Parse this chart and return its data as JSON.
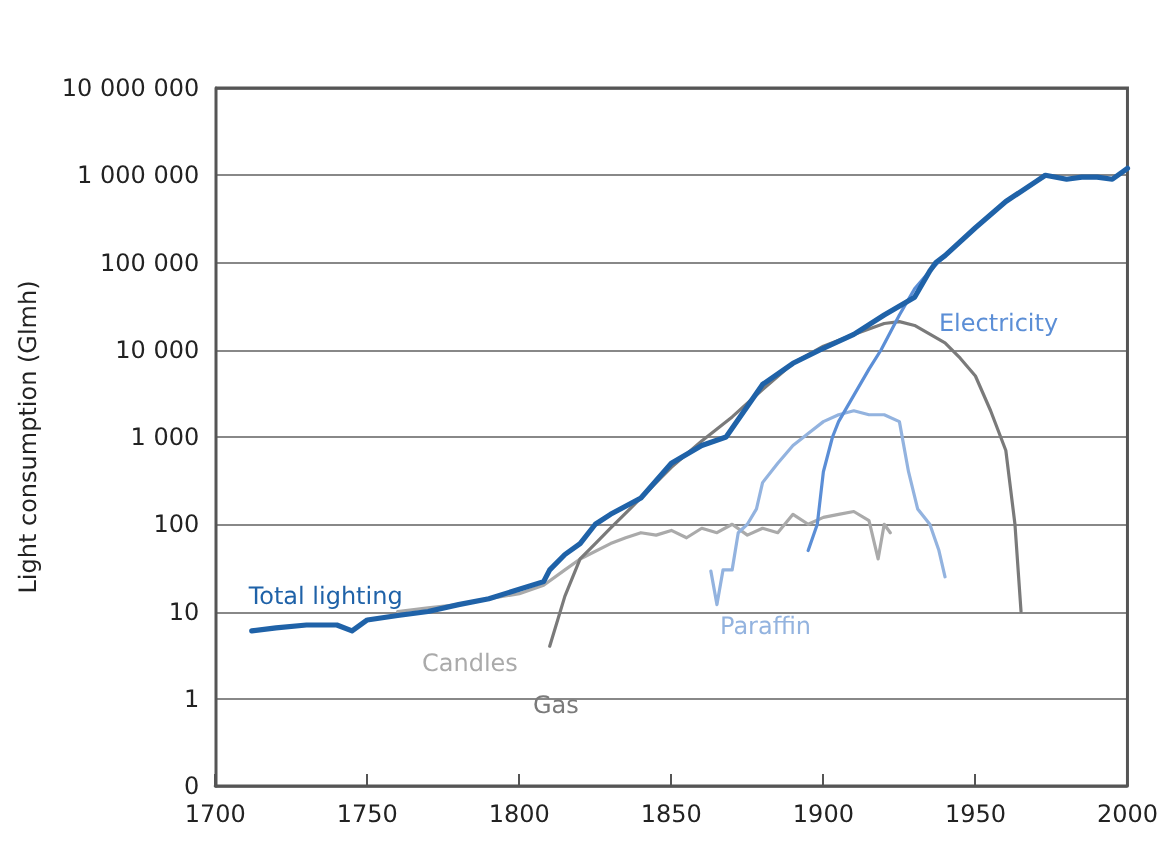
{
  "chart_data": {
    "type": "line",
    "ylabel": "Light consumption (Glmh)",
    "log": "y",
    "grid": "y",
    "legend": false,
    "marker": "none",
    "line_style": "solid",
    "xlim": [
      1700,
      2000
    ],
    "xticks": [
      1700,
      1750,
      1800,
      1850,
      1900,
      1950,
      2000
    ],
    "ylim": [
      0.1,
      10000000
    ],
    "yticks": [
      {
        "value": 0.1,
        "label": "0"
      },
      {
        "value": 1,
        "label": "1"
      },
      {
        "value": 10,
        "label": "10"
      },
      {
        "value": 100,
        "label": "100"
      },
      {
        "value": 1000,
        "label": "1 000"
      },
      {
        "value": 10000,
        "label": "10 000"
      },
      {
        "value": 100000,
        "label": "100 000"
      },
      {
        "value": 1000000,
        "label": "1 000 000"
      },
      {
        "value": 10000000,
        "label": "10 000 000"
      }
    ],
    "series": [
      {
        "name": "Candles",
        "color": "#aaaaaa",
        "x": [
          1760,
          1770,
          1780,
          1790,
          1800,
          1808,
          1815,
          1820,
          1830,
          1835,
          1840,
          1845,
          1850,
          1855,
          1860,
          1865,
          1870,
          1875,
          1880,
          1885,
          1890,
          1895,
          1900,
          1905,
          1910,
          1915,
          1918,
          1920,
          1922
        ],
        "values": [
          10,
          11,
          12,
          14,
          16,
          20,
          30,
          40,
          60,
          70,
          80,
          75,
          85,
          70,
          90,
          80,
          100,
          75,
          90,
          80,
          130,
          100,
          120,
          130,
          140,
          110,
          40,
          100,
          80
        ]
      },
      {
        "name": "Gas",
        "color": "#7a7a7a",
        "x": [
          1810,
          1815,
          1820,
          1825,
          1830,
          1840,
          1850,
          1860,
          1870,
          1880,
          1890,
          1900,
          1910,
          1920,
          1925,
          1930,
          1940,
          1945,
          1950,
          1955,
          1960,
          1963,
          1965
        ],
        "values": [
          4,
          15,
          40,
          60,
          90,
          200,
          450,
          900,
          1700,
          3500,
          7000,
          11000,
          15000,
          20000,
          21000,
          19000,
          12000,
          8000,
          5000,
          2000,
          700,
          100,
          10
        ]
      },
      {
        "name": "Paraffin",
        "color": "#93b3df",
        "x": [
          1863,
          1865,
          1867,
          1870,
          1872,
          1875,
          1878,
          1880,
          1885,
          1890,
          1895,
          1900,
          1905,
          1910,
          1915,
          1920,
          1925,
          1928,
          1931,
          1935,
          1938,
          1940
        ],
        "values": [
          29,
          12,
          30,
          30,
          80,
          100,
          150,
          300,
          500,
          800,
          1100,
          1500,
          1800,
          2000,
          1800,
          1800,
          1500,
          400,
          150,
          100,
          50,
          25
        ]
      },
      {
        "name": "Electricity",
        "color": "#5b8ed6",
        "x": [
          1895,
          1898,
          1900,
          1903,
          1905,
          1910,
          1915,
          1919,
          1925,
          1930,
          1935,
          1940
        ],
        "values": [
          50,
          100,
          400,
          1000,
          1500,
          3000,
          6000,
          10000,
          25000,
          50000,
          80000,
          120000
        ]
      },
      {
        "name": "Total lighting",
        "color": "#1f62a8",
        "x": [
          1712,
          1720,
          1730,
          1740,
          1745,
          1750,
          1760,
          1770,
          1780,
          1790,
          1800,
          1808,
          1810,
          1815,
          1820,
          1825,
          1830,
          1840,
          1850,
          1860,
          1868,
          1880,
          1890,
          1899,
          1910,
          1920,
          1930,
          1935,
          1937,
          1940,
          1950,
          1960,
          1970,
          1973,
          1980,
          1985,
          1990,
          1995,
          2000
        ],
        "values": [
          6,
          6.5,
          7,
          7,
          6,
          8,
          9,
          10,
          12,
          14,
          18,
          22,
          30,
          45,
          60,
          100,
          130,
          200,
          500,
          800,
          1000,
          4000,
          7000,
          10000,
          15000,
          25000,
          40000,
          80000,
          100000,
          120000,
          250000,
          500000,
          850000,
          1000000,
          900000,
          950000,
          950000,
          900000,
          1200000
        ]
      }
    ]
  }
}
